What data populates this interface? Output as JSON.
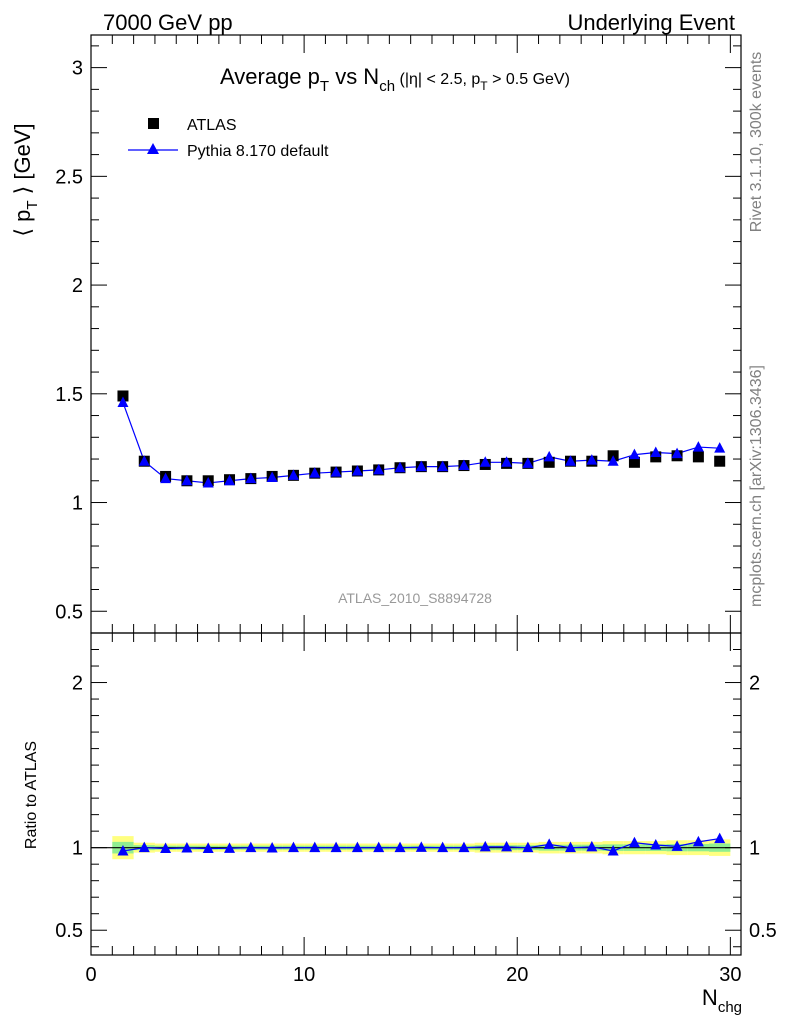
{
  "header": {
    "left": "7000 GeV pp",
    "right": "Underlying Event"
  },
  "side_labels": {
    "top": "Rivet 3.1.10,  300k events",
    "bottom": "mcplots.cern.ch [arXiv:1306.3436]"
  },
  "colors": {
    "data": "#000000",
    "mc": "#0000ff",
    "band_inner": "#90ee90",
    "band_outer": "#ffff80"
  },
  "chart_data": [
    {
      "type": "scatter",
      "panel": "main",
      "title": "Average p_T vs N_ch (|η| < 2.5, p_T > 0.5 GeV)",
      "title_parts": {
        "a": "Average p",
        "a_sub": "T",
        "b": " vs N",
        "b_sub": "ch",
        "c": " (|η| < 2.5, p",
        "c_sub": "T",
        "d": " > 0.5 GeV)"
      },
      "ylabel": "⟨ p_T ⟩ [GeV]",
      "ylabel_parts": {
        "a": "⟨ p",
        "sub": "T",
        "b": " ⟩ [GeV]"
      },
      "xlabel": "",
      "analysis_tag": "ATLAS_2010_S8894728",
      "xlim": [
        0,
        30.5
      ],
      "ylim": [
        0.4,
        3.15
      ],
      "y_ticks": [
        "0.5",
        "1",
        "1.5",
        "2",
        "2.5",
        "3"
      ],
      "y_tick_values": [
        0.5,
        1,
        1.5,
        2,
        2.5,
        3
      ],
      "legend_position": "top-left",
      "x": [
        1.5,
        2.5,
        3.5,
        4.5,
        5.5,
        6.5,
        7.5,
        8.5,
        9.5,
        10.5,
        11.5,
        12.5,
        13.5,
        14.5,
        15.5,
        16.5,
        17.5,
        18.5,
        19.5,
        20.5,
        21.5,
        22.5,
        23.5,
        24.5,
        25.5,
        26.5,
        27.5,
        28.5,
        29.5
      ],
      "series": [
        {
          "name": "ATLAS",
          "marker": "square",
          "values": [
            1.49,
            1.19,
            1.12,
            1.1,
            1.1,
            1.105,
            1.11,
            1.12,
            1.125,
            1.135,
            1.14,
            1.145,
            1.15,
            1.16,
            1.165,
            1.165,
            1.17,
            1.175,
            1.18,
            1.18,
            1.185,
            1.19,
            1.19,
            1.215,
            1.185,
            1.21,
            1.215,
            1.21,
            1.19
          ]
        },
        {
          "name": "Pythia 8.170 default",
          "marker": "triangle",
          "values": [
            1.46,
            1.19,
            1.11,
            1.1,
            1.09,
            1.1,
            1.11,
            1.115,
            1.125,
            1.135,
            1.14,
            1.145,
            1.15,
            1.16,
            1.165,
            1.165,
            1.17,
            1.185,
            1.185,
            1.18,
            1.21,
            1.19,
            1.195,
            1.19,
            1.22,
            1.23,
            1.225,
            1.255,
            1.25
          ]
        }
      ]
    },
    {
      "type": "scatter",
      "panel": "ratio",
      "ylabel": "Ratio to ATLAS",
      "xlabel": "N_chg",
      "xlabel_parts": {
        "a": "N",
        "sub": "chg"
      },
      "xlim": [
        0,
        30.5
      ],
      "ylim": [
        0.35,
        2.3
      ],
      "y_ticks": [
        "0.5",
        "1",
        "2"
      ],
      "y_tick_values": [
        0.5,
        1,
        2
      ],
      "x_ticks": [
        "0",
        "10",
        "20",
        "30"
      ],
      "x_tick_values": [
        0,
        10,
        20,
        30
      ],
      "x": [
        1.5,
        2.5,
        3.5,
        4.5,
        5.5,
        6.5,
        7.5,
        8.5,
        9.5,
        10.5,
        11.5,
        12.5,
        13.5,
        14.5,
        15.5,
        16.5,
        17.5,
        18.5,
        19.5,
        20.5,
        21.5,
        22.5,
        23.5,
        24.5,
        25.5,
        26.5,
        27.5,
        28.5,
        29.5
      ],
      "band_inner_halfwidth": [
        0.035,
        0.015,
        0.012,
        0.012,
        0.012,
        0.012,
        0.012,
        0.012,
        0.012,
        0.012,
        0.012,
        0.012,
        0.012,
        0.012,
        0.012,
        0.012,
        0.012,
        0.015,
        0.015,
        0.015,
        0.018,
        0.018,
        0.018,
        0.02,
        0.02,
        0.02,
        0.022,
        0.022,
        0.025
      ],
      "band_outer_halfwidth": [
        0.07,
        0.03,
        0.025,
        0.025,
        0.025,
        0.025,
        0.025,
        0.025,
        0.025,
        0.025,
        0.025,
        0.025,
        0.025,
        0.025,
        0.025,
        0.025,
        0.025,
        0.03,
        0.03,
        0.03,
        0.035,
        0.035,
        0.035,
        0.04,
        0.04,
        0.04,
        0.045,
        0.045,
        0.05
      ],
      "series": [
        {
          "name": "Pythia 8.170 default",
          "marker": "triangle",
          "values": [
            0.98,
            1.0,
            0.995,
            0.998,
            0.995,
            0.996,
            1.0,
            0.998,
            1.0,
            1.0,
            1.0,
            1.0,
            1.0,
            1.0,
            1.002,
            1.0,
            1.0,
            1.005,
            1.005,
            1.0,
            1.02,
            1.0,
            1.005,
            0.98,
            1.03,
            1.016,
            1.008,
            1.035,
            1.055
          ]
        }
      ]
    }
  ]
}
